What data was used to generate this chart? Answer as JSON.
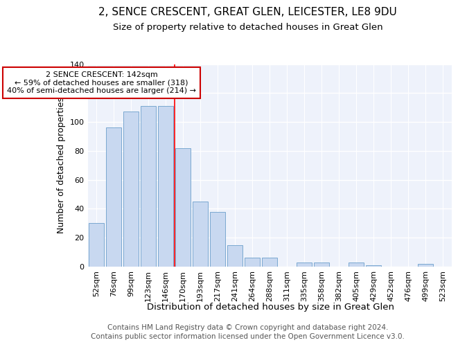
{
  "title": "2, SENCE CRESCENT, GREAT GLEN, LEICESTER, LE8 9DU",
  "subtitle": "Size of property relative to detached houses in Great Glen",
  "xlabel": "Distribution of detached houses by size in Great Glen",
  "ylabel": "Number of detached properties",
  "bar_color": "#c8d8f0",
  "bar_edge_color": "#7aa8d0",
  "background_color": "#eef2fb",
  "grid_color": "#ffffff",
  "categories": [
    "52sqm",
    "76sqm",
    "99sqm",
    "123sqm",
    "146sqm",
    "170sqm",
    "193sqm",
    "217sqm",
    "241sqm",
    "264sqm",
    "288sqm",
    "311sqm",
    "335sqm",
    "358sqm",
    "382sqm",
    "405sqm",
    "429sqm",
    "452sqm",
    "476sqm",
    "499sqm",
    "523sqm"
  ],
  "values": [
    30,
    96,
    107,
    111,
    111,
    82,
    45,
    38,
    15,
    6,
    6,
    0,
    3,
    3,
    0,
    3,
    1,
    0,
    0,
    2,
    0
  ],
  "ylim": [
    0,
    140
  ],
  "yticks": [
    0,
    20,
    40,
    60,
    80,
    100,
    120,
    140
  ],
  "red_line_index": 4,
  "annotation_text": "2 SENCE CRESCENT: 142sqm\n← 59% of detached houses are smaller (318)\n40% of semi-detached houses are larger (214) →",
  "annotation_box_color": "#ffffff",
  "annotation_box_edge_color": "#cc0000",
  "footer_line1": "Contains HM Land Registry data © Crown copyright and database right 2024.",
  "footer_line2": "Contains public sector information licensed under the Open Government Licence v3.0.",
  "title_fontsize": 11,
  "subtitle_fontsize": 9.5,
  "tick_fontsize": 8,
  "ylabel_fontsize": 9,
  "xlabel_fontsize": 9.5,
  "footer_fontsize": 7.5
}
